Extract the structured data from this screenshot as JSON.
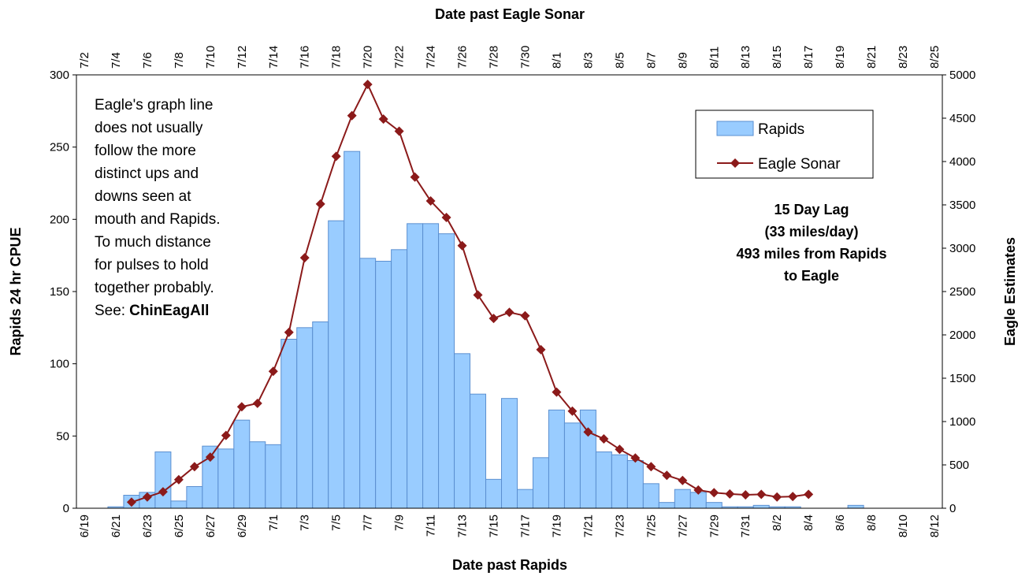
{
  "chart_data": {
    "type": "bar-line",
    "x_label": "Date past Rapids",
    "x2_label": "Date past Eagle Sonar",
    "y_label": "Rapids 24 hr CPUE",
    "y2_label": "Eagle Estimates",
    "categories": [
      "6/19",
      null,
      "6/21",
      null,
      "6/23",
      null,
      "6/25",
      null,
      "6/27",
      null,
      "6/29",
      null,
      "7/1",
      null,
      "7/3",
      null,
      "7/5",
      null,
      "7/7",
      null,
      "7/9",
      null,
      "7/11",
      null,
      "7/13",
      null,
      "7/15",
      null,
      "7/17",
      null,
      "7/19",
      null,
      "7/21",
      null,
      "7/23",
      null,
      "7/25",
      null,
      "7/27",
      null,
      "7/29",
      null,
      "7/31",
      null,
      "8/2",
      null,
      "8/4",
      null,
      "8/6",
      null,
      "8/8",
      null,
      "8/10",
      null,
      "8/12"
    ],
    "x2categories": [
      "7/2",
      null,
      "7/4",
      null,
      "7/6",
      null,
      "7/8",
      null,
      "7/10",
      null,
      "7/12",
      null,
      "7/14",
      null,
      "7/16",
      null,
      "7/18",
      null,
      "7/20",
      null,
      "7/22",
      null,
      "7/24",
      null,
      "7/26",
      null,
      "7/28",
      null,
      "7/30",
      null,
      "8/1",
      null,
      "8/3",
      null,
      "8/5",
      null,
      "8/7",
      null,
      "8/9",
      null,
      "8/11",
      null,
      "8/13",
      null,
      "8/15",
      null,
      "8/17",
      null,
      "8/19",
      null,
      "8/21",
      null,
      "8/23",
      null,
      "8/25"
    ],
    "series": [
      {
        "name": "Rapids",
        "type": "bar",
        "color": "#99ccff",
        "values": [
          null,
          null,
          1,
          9,
          11,
          39,
          5,
          15,
          43,
          41,
          61,
          46,
          44,
          117,
          125,
          129,
          199,
          247,
          173,
          171,
          179,
          197,
          197,
          190,
          107,
          79,
          20,
          76,
          13,
          35,
          68,
          59,
          68,
          39,
          37,
          33,
          17,
          4,
          13,
          11,
          4,
          1,
          1,
          2,
          1,
          1,
          null,
          null,
          null,
          2,
          null,
          null,
          null,
          null,
          null
        ]
      },
      {
        "name": "Eagle Sonar",
        "type": "line",
        "axis": "y2",
        "color": "#8b1a1a",
        "values": [
          null,
          null,
          null,
          70,
          130,
          190,
          330,
          480,
          590,
          840,
          1170,
          1210,
          1580,
          2030,
          2890,
          3510,
          4060,
          4530,
          4890,
          4490,
          4350,
          3820,
          3545,
          3355,
          3030,
          2460,
          2190,
          2260,
          2220,
          1830,
          1340,
          1120,
          880,
          800,
          680,
          580,
          480,
          380,
          320,
          210,
          180,
          165,
          155,
          160,
          130,
          135,
          160,
          null,
          null,
          null,
          null,
          null,
          null,
          null,
          null
        ]
      }
    ],
    "ylim": [
      0,
      300
    ],
    "yticks": [
      0,
      50,
      100,
      150,
      200,
      250,
      300
    ],
    "y2lim": [
      0,
      5000
    ],
    "y2ticks": [
      0,
      500,
      1000,
      1500,
      2000,
      2500,
      3000,
      3500,
      4000,
      4500,
      5000
    ],
    "grid": false,
    "note": [
      "Eagle's graph line",
      "does not usually",
      "follow the more",
      "distinct ups and",
      "downs seen at",
      "mouth and Rapids.",
      "To much distance",
      "for pulses to hold",
      "together probably."
    ],
    "note_see": "See:",
    "note_link": "ChinEagAll",
    "lag_text": [
      "15 Day Lag",
      "(33 miles/day)",
      "493 miles from Rapids",
      "to Eagle"
    ]
  }
}
